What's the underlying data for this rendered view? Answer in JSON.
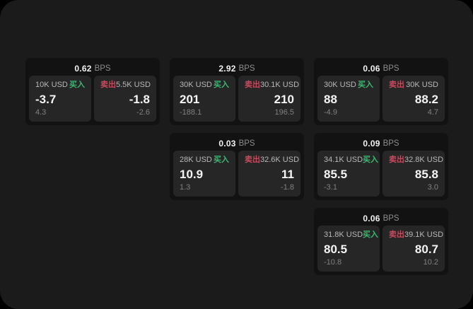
{
  "labels": {
    "buy": "买入",
    "sell": "卖出",
    "bps_unit": "BPS"
  },
  "colors": {
    "panel_bg": "#1b1b1b",
    "card_bg": "#121212",
    "tile_bg": "#262626",
    "buy_green": "#3cb873",
    "sell_red": "#c64a5e"
  },
  "cards": [
    {
      "bps": "0.62",
      "buy": {
        "amount": "10K USD",
        "value": "-3.7",
        "sub": "4.3"
      },
      "sell": {
        "amount": "5.5K USD",
        "value": "-1.8",
        "sub": "-2.6"
      }
    },
    {
      "bps": "2.92",
      "buy": {
        "amount": "30K USD",
        "value": "201",
        "sub": "-188.1"
      },
      "sell": {
        "amount": "30.1K USD",
        "value": "210",
        "sub": "196.5"
      }
    },
    {
      "bps": "0.06",
      "buy": {
        "amount": "30K USD",
        "value": "88",
        "sub": "-4.9"
      },
      "sell": {
        "amount": "30K USD",
        "value": "88.2",
        "sub": "4.7"
      }
    },
    {
      "bps": "0.03",
      "buy": {
        "amount": "28K USD",
        "value": "10.9",
        "sub": "1.3"
      },
      "sell": {
        "amount": "32.6K USD",
        "value": "11",
        "sub": "-1.8"
      }
    },
    {
      "bps": "0.09",
      "buy": {
        "amount": "34.1K USD",
        "value": "85.5",
        "sub": "-3.1"
      },
      "sell": {
        "amount": "32.8K USD",
        "value": "85.8",
        "sub": "3.0"
      }
    },
    {
      "bps": "0.06",
      "buy": {
        "amount": "31.8K USD",
        "value": "80.5",
        "sub": "-10.8"
      },
      "sell": {
        "amount": "39.1K USD",
        "value": "80.7",
        "sub": "10.2"
      }
    }
  ]
}
